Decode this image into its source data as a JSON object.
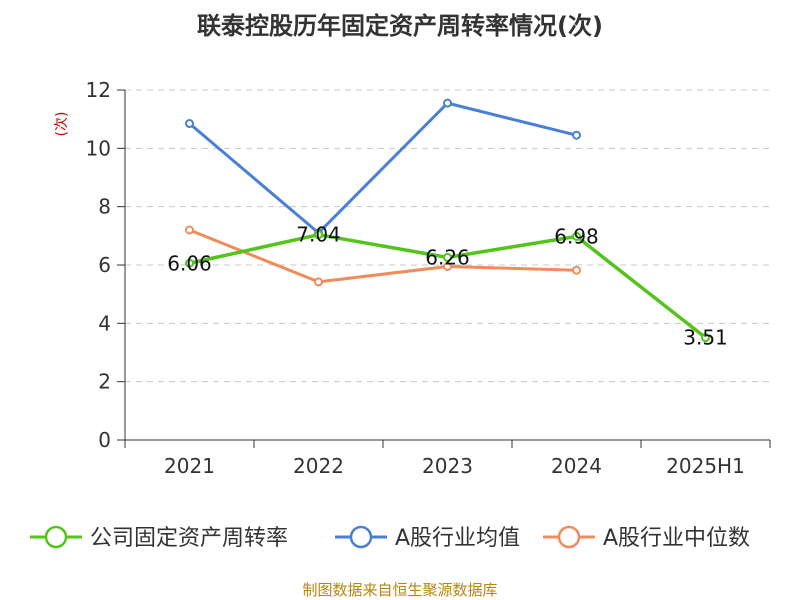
{
  "chart_data": {
    "type": "line",
    "title": "联泰控股历年固定资产周转率情况(次)",
    "ylabel": "(次)",
    "xlabel": "",
    "categories": [
      "2021",
      "2022",
      "2023",
      "2024",
      "2025H1"
    ],
    "ylim": [
      0,
      12
    ],
    "yticks": [
      0,
      2,
      4,
      6,
      8,
      10,
      12
    ],
    "grid": true,
    "legend_position": "bottom",
    "series": [
      {
        "name": "公司固定资产周转率",
        "color": "#52c41a",
        "values": [
          6.06,
          7.04,
          6.26,
          6.98,
          3.51
        ],
        "data_labels": [
          "6.06",
          "7.04",
          "6.26",
          "6.98",
          "3.51"
        ]
      },
      {
        "name": "A股行业均值",
        "color": "#4a7fd8",
        "values": [
          10.85,
          7.1,
          11.55,
          10.45,
          null
        ]
      },
      {
        "name": "A股行业中位数",
        "color": "#f08c5a",
        "values": [
          7.2,
          5.42,
          5.95,
          5.82,
          null
        ]
      }
    ]
  },
  "footer": {
    "source": "制图数据来自恒生聚源数据库"
  }
}
